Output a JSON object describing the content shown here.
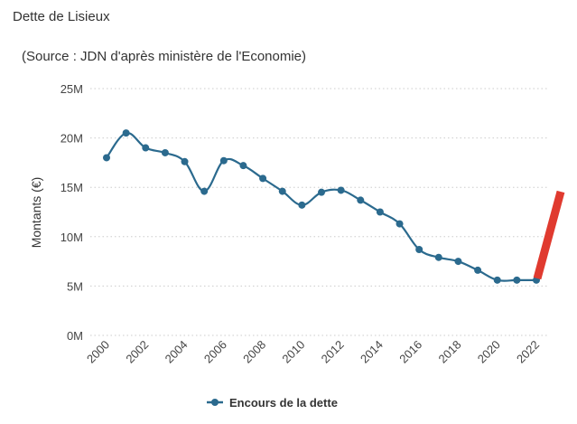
{
  "title": "Dette de Lisieux",
  "subtitle": "(Source : JDN d'après ministère de l'Economie)",
  "colors": {
    "series": "#2b6a8e",
    "grid": "#cccccc",
    "highlight": "#e03a2f"
  },
  "chart_data": {
    "type": "line",
    "ylabel": "Montants (€)",
    "ylim": [
      0,
      25000000
    ],
    "yticks": [
      {
        "value": 0,
        "label": "0M"
      },
      {
        "value": 5000000,
        "label": "5M"
      },
      {
        "value": 10000000,
        "label": "10M"
      },
      {
        "value": 15000000,
        "label": "15M"
      },
      {
        "value": 20000000,
        "label": "20M"
      },
      {
        "value": 25000000,
        "label": "25M"
      }
    ],
    "xlim": [
      2000,
      2022
    ],
    "xticks": [
      "2000",
      "2002",
      "2004",
      "2006",
      "2008",
      "2010",
      "2012",
      "2014",
      "2016",
      "2018",
      "2020",
      "2022"
    ],
    "grid": "horizontal dotted",
    "legend_position": "bottom",
    "series": [
      {
        "name": "Encours de la dette",
        "x": [
          2000,
          2001,
          2002,
          2003,
          2004,
          2005,
          2006,
          2007,
          2008,
          2009,
          2010,
          2011,
          2012,
          2013,
          2014,
          2015,
          2016,
          2017,
          2018,
          2019,
          2020,
          2021,
          2022
        ],
        "y": [
          18000000,
          20500000,
          19000000,
          18500000,
          17600000,
          14600000,
          17700000,
          17200000,
          15900000,
          14600000,
          13200000,
          14500000,
          14700000,
          13700000,
          12500000,
          11300000,
          8700000,
          7900000,
          7500000,
          6600000,
          5600000,
          5600000,
          5600000
        ]
      }
    ]
  }
}
